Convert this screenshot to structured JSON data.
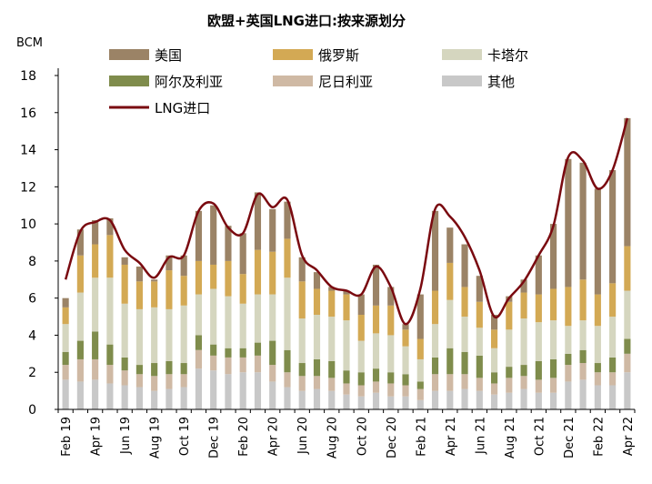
{
  "chart_data": {
    "type": "bar",
    "title": "欧盟+英国LNG进口:按来源划分",
    "ylabel": "BCM",
    "xlabel": "",
    "ylim": [
      0,
      18
    ],
    "yticks": [
      0,
      2,
      4,
      6,
      8,
      10,
      12,
      14,
      16,
      18
    ],
    "grid": false,
    "legend_position": "top",
    "categories": [
      "Feb 19",
      "Mar 19",
      "Apr 19",
      "May 19",
      "Jun 19",
      "Jul 19",
      "Aug 19",
      "Sep 19",
      "Oct 19",
      "Nov 19",
      "Dec 19",
      "Jan 20",
      "Feb 20",
      "Mar 20",
      "Apr 20",
      "May 20",
      "Jun 20",
      "Jul 20",
      "Aug 20",
      "Sep 20",
      "Oct 20",
      "Nov 20",
      "Dec 20",
      "Jan 21",
      "Feb 21",
      "Mar 21",
      "Apr 21",
      "May 21",
      "Jun 21",
      "Jul 21",
      "Aug 21",
      "Sep 21",
      "Oct 21",
      "Nov 21",
      "Dec 21",
      "Jan 22",
      "Feb 22",
      "Mar 22",
      "Apr 22"
    ],
    "tick_labels": [
      "Feb 19",
      "Apr 19",
      "Jun 19",
      "Aug 19",
      "Oct 19",
      "Dec 19",
      "Feb 20",
      "Apr 20",
      "Jun 20",
      "Aug 20",
      "Oct 20",
      "Dec 20",
      "Feb 21",
      "Apr 21",
      "Jun 21",
      "Aug 21",
      "Oct 21",
      "Dec 21",
      "Feb 22",
      "Apr 22"
    ],
    "series": [
      {
        "name": "其他",
        "color": "#c8c8c8",
        "values": [
          1.6,
          1.5,
          1.6,
          1.4,
          1.3,
          1.2,
          1.0,
          1.1,
          1.2,
          2.2,
          2.1,
          1.9,
          2.0,
          2.0,
          1.5,
          1.2,
          1.0,
          1.1,
          1.0,
          0.8,
          0.7,
          0.9,
          0.7,
          0.7,
          0.5,
          1.0,
          1.0,
          1.1,
          1.0,
          0.8,
          0.9,
          1.1,
          0.9,
          0.9,
          1.5,
          1.6,
          1.3,
          1.3,
          2.0
        ]
      },
      {
        "name": "尼日利亚",
        "color": "#cfb9a4",
        "values": [
          0.8,
          1.2,
          1.1,
          1.0,
          0.8,
          0.7,
          0.8,
          0.8,
          0.7,
          1.0,
          0.8,
          0.9,
          0.8,
          0.9,
          0.9,
          0.8,
          0.8,
          0.7,
          0.7,
          0.6,
          0.6,
          0.6,
          0.7,
          0.6,
          0.6,
          0.9,
          0.9,
          0.8,
          0.7,
          0.6,
          0.8,
          0.7,
          0.7,
          0.8,
          0.9,
          0.9,
          0.7,
          0.7,
          1.0
        ]
      },
      {
        "name": "阿尔及利亚",
        "color": "#7f8c4c",
        "values": [
          0.7,
          1.0,
          1.5,
          1.1,
          0.7,
          0.5,
          0.7,
          0.7,
          0.6,
          0.8,
          0.6,
          0.5,
          0.5,
          0.7,
          1.3,
          1.2,
          0.7,
          0.9,
          0.9,
          0.7,
          0.7,
          0.7,
          0.6,
          0.6,
          0.4,
          0.9,
          1.4,
          1.2,
          1.2,
          0.6,
          0.6,
          0.6,
          1.0,
          1.0,
          0.6,
          0.7,
          0.5,
          0.8,
          0.8
        ]
      },
      {
        "name": "卡塔尔",
        "color": "#d5d6bf",
        "values": [
          1.5,
          2.6,
          2.9,
          3.6,
          2.9,
          3.0,
          3.0,
          2.8,
          3.1,
          2.2,
          3.0,
          2.8,
          2.4,
          2.6,
          2.5,
          3.9,
          2.4,
          2.4,
          2.4,
          2.7,
          1.7,
          1.9,
          2.0,
          1.5,
          1.2,
          1.8,
          2.6,
          1.9,
          1.5,
          1.3,
          2.0,
          2.5,
          2.1,
          2.1,
          1.5,
          1.6,
          2.0,
          2.2,
          2.6
        ]
      },
      {
        "name": "俄罗斯",
        "color": "#d3a954",
        "values": [
          0.9,
          2.0,
          1.8,
          2.3,
          2.1,
          1.5,
          1.4,
          2.1,
          1.6,
          1.8,
          1.3,
          1.9,
          1.6,
          2.4,
          2.3,
          2.1,
          2.0,
          1.4,
          1.4,
          1.4,
          1.4,
          1.5,
          1.6,
          0.9,
          1.1,
          1.8,
          2.0,
          1.6,
          1.4,
          1.0,
          1.5,
          1.4,
          1.5,
          1.7,
          2.1,
          2.2,
          1.7,
          1.8,
          2.4
        ]
      },
      {
        "name": "美国",
        "color": "#9b8366",
        "values": [
          0.5,
          1.4,
          1.3,
          0.9,
          0.4,
          0.8,
          0.1,
          0.8,
          1.1,
          2.7,
          3.2,
          1.9,
          2.2,
          3.1,
          2.3,
          2.0,
          1.3,
          0.9,
          0.2,
          0.2,
          1.1,
          2.2,
          1.0,
          0.3,
          2.4,
          4.3,
          1.9,
          2.3,
          1.4,
          0.8,
          0.3,
          0.7,
          2.1,
          3.5,
          6.9,
          6.3,
          5.7,
          6.1,
          6.9
        ]
      },
      {
        "name": "LNG进口",
        "type": "line",
        "color": "#7a0a10",
        "values": [
          7.0,
          9.6,
          10.1,
          10.2,
          8.6,
          7.9,
          7.1,
          8.2,
          8.3,
          10.7,
          11.1,
          9.8,
          9.5,
          11.6,
          10.9,
          11.3,
          8.3,
          7.5,
          6.6,
          6.4,
          6.2,
          7.7,
          6.6,
          4.6,
          6.5,
          10.8,
          10.4,
          9.3,
          7.5,
          5.0,
          6.0,
          6.9,
          8.3,
          9.9,
          13.6,
          13.4,
          11.9,
          12.9,
          15.7
        ]
      }
    ]
  }
}
